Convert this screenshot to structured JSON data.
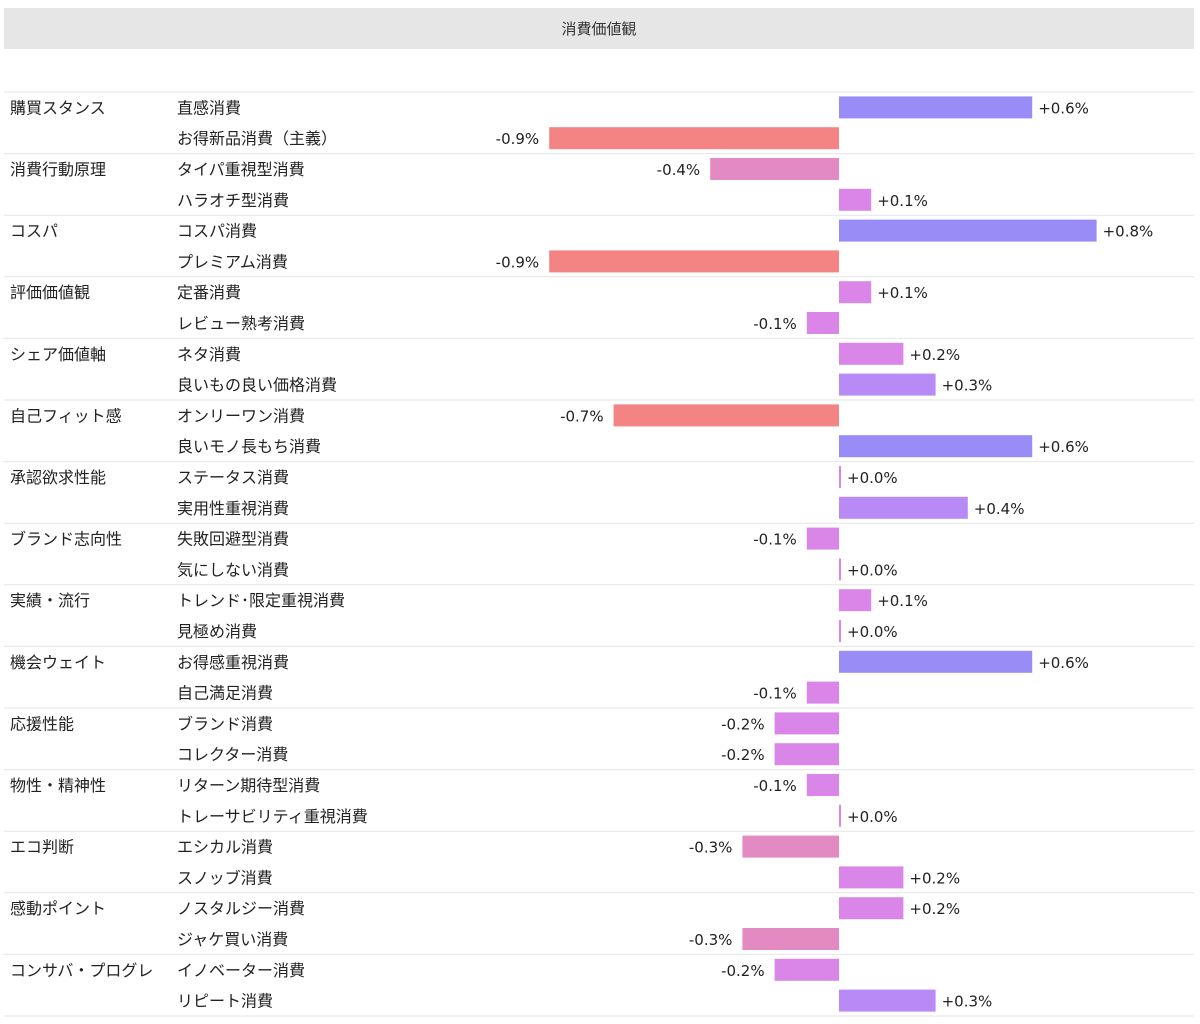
{
  "chart_data": {
    "type": "bar",
    "orientation": "horizontal",
    "title": "消費価値観",
    "groups": [
      {
        "name": "購買スタンス",
        "items": [
          {
            "label": "直感消費",
            "value": 0.6,
            "value_label": "+0.6%"
          },
          {
            "label": "お得新品消費（主義）",
            "value": -0.9,
            "value_label": "-0.9%"
          }
        ]
      },
      {
        "name": "消費行動原理",
        "items": [
          {
            "label": "タイパ重視型消費",
            "value": -0.4,
            "value_label": "-0.4%"
          },
          {
            "label": "ハラオチ型消費",
            "value": 0.1,
            "value_label": "+0.1%"
          }
        ]
      },
      {
        "name": "コスパ",
        "items": [
          {
            "label": "コスパ消費",
            "value": 0.8,
            "value_label": "+0.8%"
          },
          {
            "label": "プレミアム消費",
            "value": -0.9,
            "value_label": "-0.9%"
          }
        ]
      },
      {
        "name": "評価価値観",
        "items": [
          {
            "label": "定番消費",
            "value": 0.1,
            "value_label": "+0.1%"
          },
          {
            "label": "レビュー熟考消費",
            "value": -0.1,
            "value_label": "-0.1%"
          }
        ]
      },
      {
        "name": "シェア価値軸",
        "items": [
          {
            "label": "ネタ消費",
            "value": 0.2,
            "value_label": "+0.2%"
          },
          {
            "label": "良いもの良い価格消費",
            "value": 0.3,
            "value_label": "+0.3%"
          }
        ]
      },
      {
        "name": "自己フィット感",
        "items": [
          {
            "label": "オンリーワン消費",
            "value": -0.7,
            "value_label": "-0.7%"
          },
          {
            "label": "良いモノ長もち消費",
            "value": 0.6,
            "value_label": "+0.6%"
          }
        ]
      },
      {
        "name": "承認欲求性能",
        "items": [
          {
            "label": "ステータス消費",
            "value": 0.0,
            "value_label": "+0.0%"
          },
          {
            "label": "実用性重視消費",
            "value": 0.4,
            "value_label": "+0.4%"
          }
        ]
      },
      {
        "name": "ブランド志向性",
        "items": [
          {
            "label": "失敗回避型消費",
            "value": -0.1,
            "value_label": "-0.1%"
          },
          {
            "label": "気にしない消費",
            "value": 0.0,
            "value_label": "+0.0%"
          }
        ]
      },
      {
        "name": "実績・流行",
        "items": [
          {
            "label": "トレンド･限定重視消費",
            "value": 0.1,
            "value_label": "+0.1%"
          },
          {
            "label": "見極め消費",
            "value": 0.0,
            "value_label": "+0.0%"
          }
        ]
      },
      {
        "name": "機会ウェイト",
        "items": [
          {
            "label": "お得感重視消費",
            "value": 0.6,
            "value_label": "+0.6%"
          },
          {
            "label": "自己満足消費",
            "value": -0.1,
            "value_label": "-0.1%"
          }
        ]
      },
      {
        "name": "応援性能",
        "items": [
          {
            "label": "ブランド消費",
            "value": -0.2,
            "value_label": "-0.2%"
          },
          {
            "label": "コレクター消費",
            "value": -0.2,
            "value_label": "-0.2%"
          }
        ]
      },
      {
        "name": "物性・精神性",
        "items": [
          {
            "label": "リターン期待型消費",
            "value": -0.1,
            "value_label": "-0.1%"
          },
          {
            "label": "トレーサビリティ重視消費",
            "value": 0.0,
            "value_label": "+0.0%"
          }
        ]
      },
      {
        "name": "エコ判断",
        "items": [
          {
            "label": "エシカル消費",
            "value": -0.3,
            "value_label": "-0.3%"
          },
          {
            "label": "スノッブ消費",
            "value": 0.2,
            "value_label": "+0.2%"
          }
        ]
      },
      {
        "name": "感動ポイント",
        "items": [
          {
            "label": "ノスタルジー消費",
            "value": 0.2,
            "value_label": "+0.2%"
          },
          {
            "label": "ジャケ買い消費",
            "value": -0.3,
            "value_label": "-0.3%"
          }
        ]
      },
      {
        "name": "コンサバ・プログレ",
        "items": [
          {
            "label": "イノベーター消費",
            "value": -0.2,
            "value_label": "-0.2%"
          },
          {
            "label": "リピート消費",
            "value": 0.3,
            "value_label": "+0.3%"
          }
        ]
      }
    ],
    "colors": {
      "strong_positive": "#9a8cf7",
      "positive": "#b78af5",
      "small": "#d986e8",
      "negative_mid": "#e38ac3",
      "strong_negative": "#f48383",
      "row_divider": "#e6e6e6"
    }
  }
}
